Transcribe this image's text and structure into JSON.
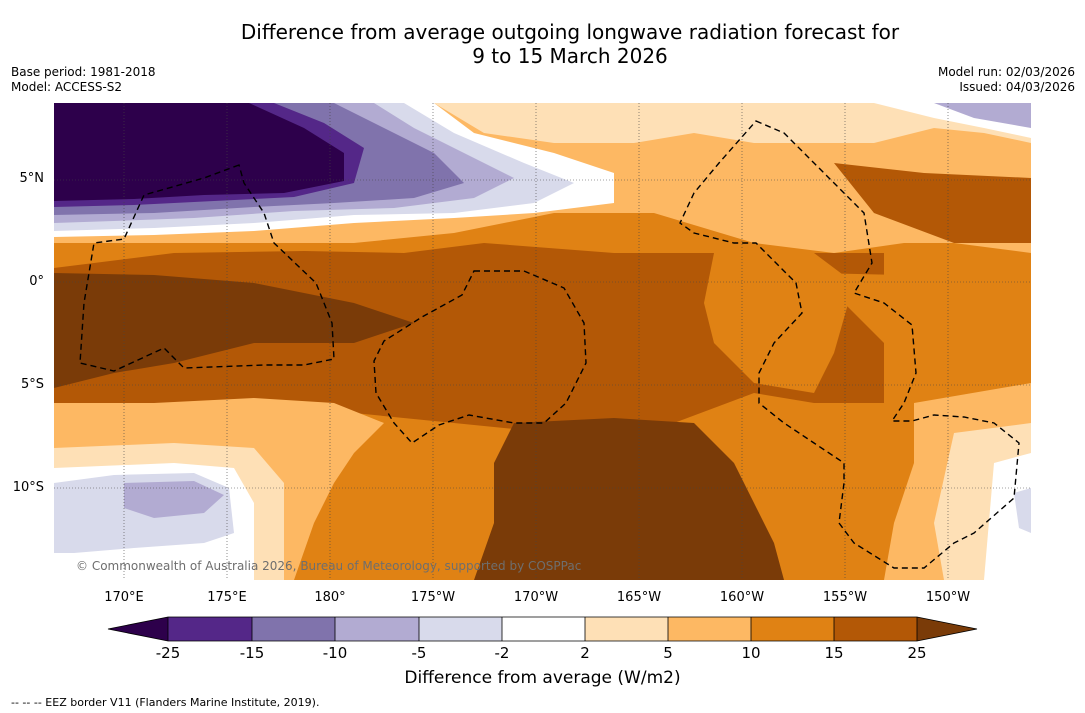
{
  "title": {
    "line1": "Difference from average outgoing longwave radiation forecast for",
    "line2": "9 to 15 March 2026"
  },
  "info_left": {
    "base_period": "Base period: 1981-2018",
    "model": "Model: ACCESS-S2"
  },
  "info_right": {
    "model_run": "Model run: 02/03/2026",
    "issued": "Issued: 04/03/2026"
  },
  "map": {
    "lat_labels": [
      "5°N",
      "0°",
      "5°S",
      "10°S"
    ],
    "lon_labels": [
      "170°E",
      "175°E",
      "180°",
      "175°W",
      "170°W",
      "165°W",
      "160°W",
      "155°W",
      "150°W"
    ],
    "copyright": "© Commonwealth of Australia 2026, Bureau of Meteorology, supported by COSPPac",
    "colors": {
      "pos_25": "#7a3b08",
      "pos_15": "#b35806",
      "pos_10": "#e08214",
      "pos_5": "#fdb863",
      "pos_2": "#fee0b6",
      "neutral": "#ffffff",
      "neg_2": "#d8daeb",
      "neg_5": "#b2abd2",
      "neg_10": "#8073ac",
      "neg_15": "#542788",
      "neg_25": "#2d004b"
    }
  },
  "colorbar": {
    "ticks": [
      "-25",
      "-15",
      "-10",
      "-5",
      "-2",
      "2",
      "5",
      "10",
      "15",
      "25"
    ],
    "label": "Difference from average (W/m2)",
    "colors": [
      "#2d004b",
      "#542788",
      "#8073ac",
      "#b2abd2",
      "#d8daeb",
      "#ffffff",
      "#fee0b6",
      "#fdb863",
      "#e08214",
      "#b35806",
      "#7a3b08"
    ]
  },
  "footnote": "--  --  -- EEZ border V11 (Flanders Marine Institute, 2019)."
}
